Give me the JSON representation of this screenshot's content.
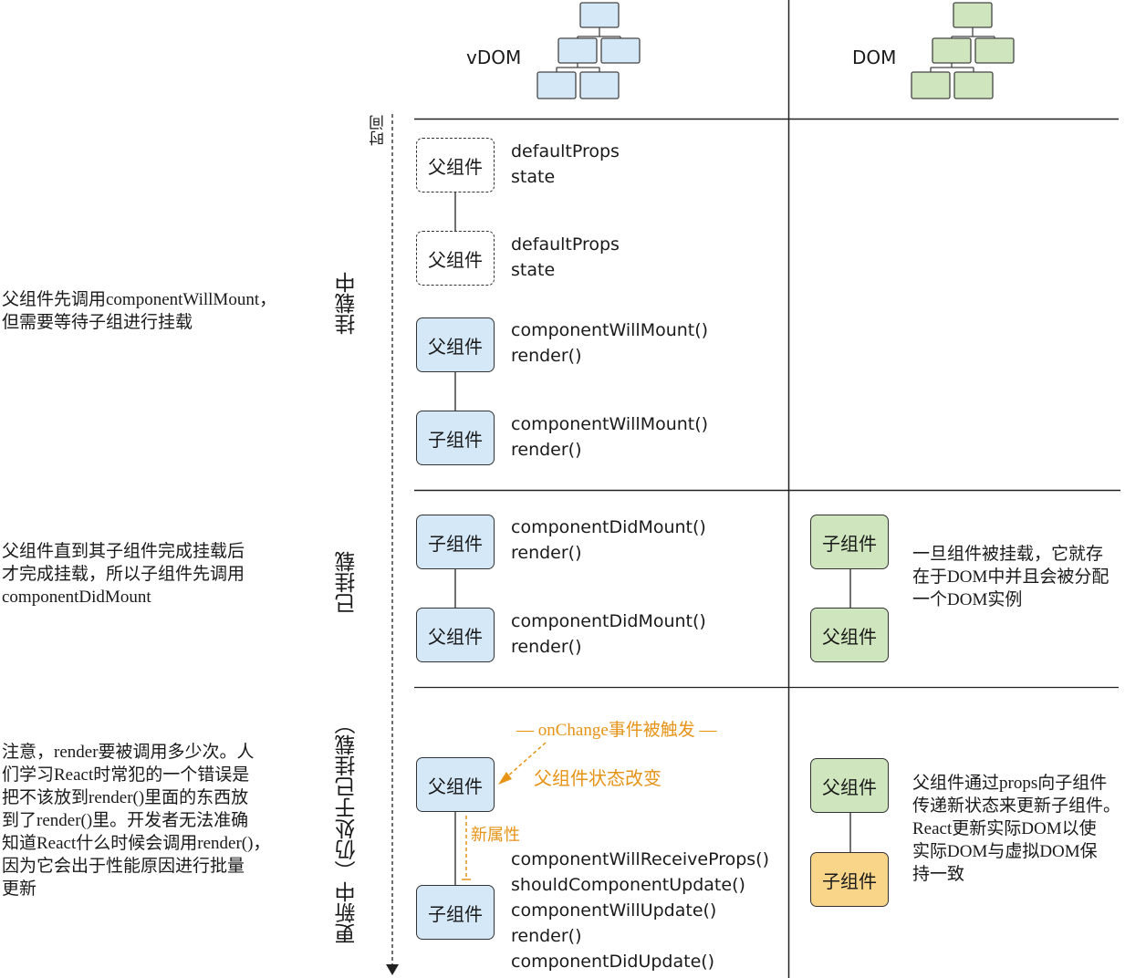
{
  "header": {
    "vdom_label": "vDOM",
    "dom_label": "DOM",
    "time_label": "时间"
  },
  "phases": {
    "mounting": "挂载中",
    "mounted": "已挂载",
    "updating": "更新中（仍处于已挂载）"
  },
  "notes": {
    "mounting": "父组件先调用componentWillMount，\n但需要等待子组进行挂载",
    "mounted": "父组件直到其子组件完成挂载后\n才完成挂载，所以子组件先调用\ncomponentDidMount",
    "updating": "注意，render要被调用多少次。人\n们学习React时常犯的一个错误是\n把不该放到render()里面的东西放\n到了render()里。开发者无法准确\n知道React什么时候会调用render()，\n因为它会出于性能原因进行批量\n更新"
  },
  "vdom_boxes": {
    "b1": "父组件",
    "b2": "父组件",
    "b3": "父组件",
    "b4": "子组件",
    "b5": "子组件",
    "b6": "父组件",
    "b7": "父组件",
    "b8": "子组件"
  },
  "methods": {
    "m1": "defaultProps\nstate",
    "m2": "defaultProps\nstate",
    "m3": "componentWillMount()\nrender()",
    "m4": "componentWillMount()\nrender()",
    "m5": "componentDidMount()\nrender()",
    "m6": "componentDidMount()\nrender()",
    "m7": "componentWillReceiveProps()\nshouldComponentUpdate()\ncomponentWillUpdate()\nrender()\ncomponentDidUpdate()"
  },
  "dom_boxes": {
    "d1": "子组件",
    "d2": "父组件",
    "d3": "父组件",
    "d4": "子组件"
  },
  "dom_notes": {
    "mounted": "一旦组件被挂载，它就存\n在于DOM中并且会被分配\n一个DOM实例",
    "updating": "父组件通过props向子组件\n传递新状态来更新子组件。\nReact更新实际DOM以使\n实际DOM与虚拟DOM保\n持一致"
  },
  "events": {
    "on_change": "— onChange事件被触发 —",
    "state_change": "父组件状态改变",
    "new_props": "新属性"
  },
  "colors": {
    "blue_fill": "#d5e8f8",
    "green_fill": "#cfe5bd",
    "orange_fill": "#f9d58a",
    "accent": "#e69316"
  }
}
